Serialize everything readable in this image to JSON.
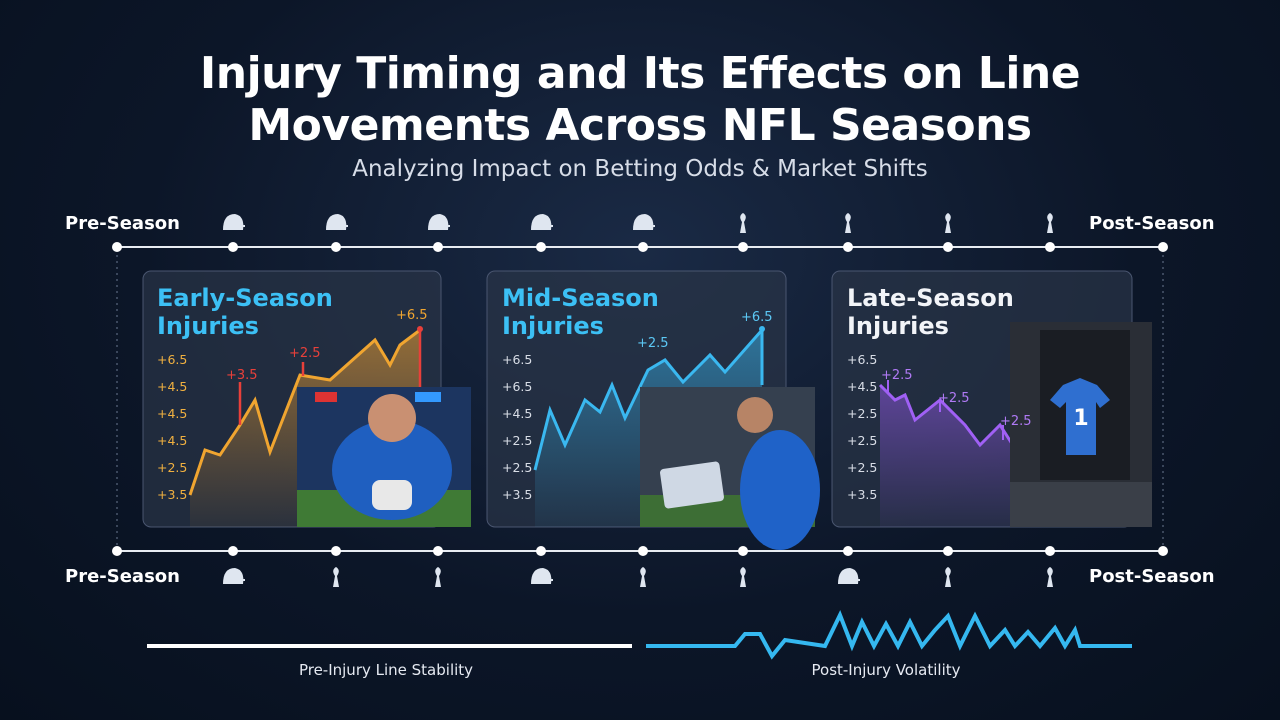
{
  "header": {
    "title": "Injury Timing and Its Effects on Line Movements Across NFL Seasons",
    "subtitle": "Analyzing Impact on Betting Odds & Market Shifts"
  },
  "timeline": {
    "start_label": "Pre-Season",
    "end_label": "Post-Season"
  },
  "panels": [
    {
      "title": "Early-Season Injuries",
      "axis_labels": [
        "+6.5",
        "+4.5",
        "+4.5",
        "+4.5",
        "+2.5",
        "+3.5"
      ],
      "annotations": [
        "+3.5",
        "+2.5",
        "+6.5"
      ]
    },
    {
      "title": "Mid-Season Injuries",
      "axis_labels": [
        "+6.5",
        "+6.5",
        "+4.5",
        "+2.5",
        "+2.5",
        "+3.5"
      ],
      "annotations": [
        "+2.5",
        "+6.5"
      ]
    },
    {
      "title": "Late-Season Injuries",
      "axis_labels": [
        "+6.5",
        "+4.5",
        "+2.5",
        "+2.5",
        "+2.5",
        "+3.5"
      ],
      "annotations": [
        "+2.5",
        "+2.5",
        "+2.5"
      ]
    }
  ],
  "legend": {
    "stable": "Pre-Injury Line Stability",
    "volatile": "Post-Injury Volatility"
  }
}
